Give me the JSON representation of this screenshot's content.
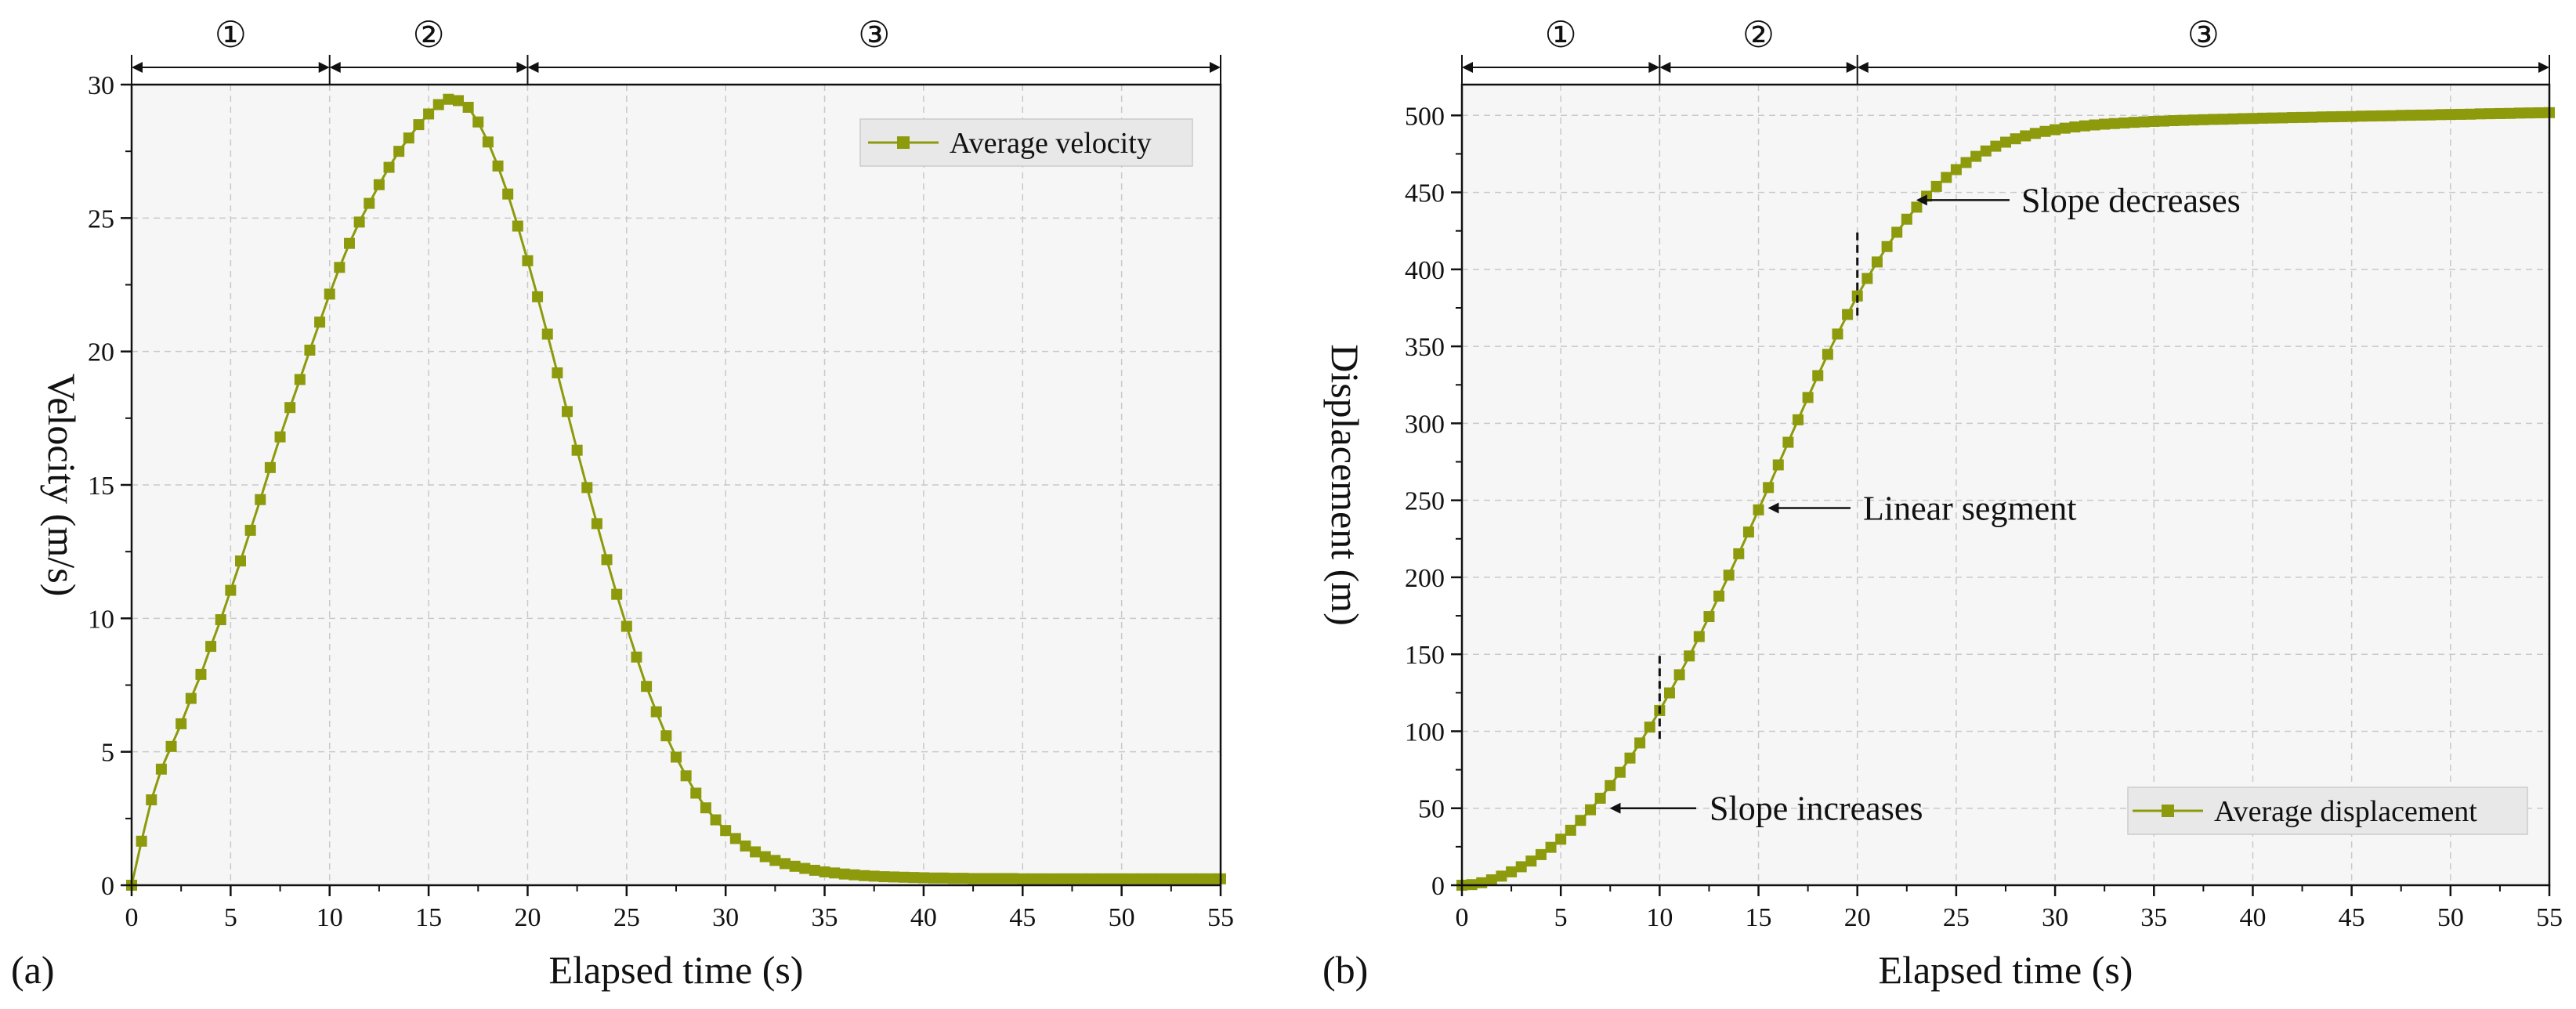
{
  "chart_data": [
    {
      "id": "a",
      "type": "line",
      "panel_label": "(a)",
      "xlabel": "Elapsed time (s)",
      "ylabel": "Velocity (m/s)",
      "xlim": [
        0,
        55
      ],
      "ylim": [
        0,
        30
      ],
      "xticks": [
        0,
        5,
        10,
        15,
        20,
        25,
        30,
        35,
        40,
        45,
        50,
        55
      ],
      "yticks": [
        0,
        5,
        10,
        15,
        20,
        25,
        30
      ],
      "grid": true,
      "legend_position": "top-right",
      "phase_boundaries": [
        0,
        10,
        20,
        55
      ],
      "phases": [
        "①",
        "②",
        "③"
      ],
      "series": [
        {
          "name": "Average velocity",
          "color": "#8c9a0c",
          "marker": "square",
          "x": [
            0,
            0.5,
            1,
            1.5,
            2,
            2.5,
            3,
            3.5,
            4,
            4.5,
            5,
            5.5,
            6,
            6.5,
            7,
            7.5,
            8,
            8.5,
            9,
            9.5,
            10,
            10.5,
            11,
            11.5,
            12,
            12.5,
            13,
            13.5,
            14,
            14.5,
            15,
            15.5,
            16,
            16.5,
            17,
            17.5,
            18,
            18.5,
            19,
            19.5,
            20,
            20.5,
            21,
            21.5,
            22,
            22.5,
            23,
            23.5,
            24,
            24.5,
            25,
            25.5,
            26,
            26.5,
            27,
            27.5,
            28,
            28.5,
            29,
            29.5,
            30,
            30.5,
            31,
            31.5,
            32,
            32.5,
            33,
            33.5,
            34,
            34.5,
            35,
            35.5,
            36,
            36.5,
            37,
            37.5,
            38,
            38.5,
            39,
            39.5,
            40,
            40.5,
            41,
            41.5,
            42,
            42.5,
            43,
            43.5,
            44,
            44.5,
            45,
            45.5,
            46,
            46.5,
            47,
            47.5,
            48,
            48.5,
            49,
            49.5,
            50,
            50.5,
            51,
            51.5,
            52,
            52.5,
            53,
            53.5,
            54,
            54.5,
            55
          ],
          "y": [
            0,
            1.65,
            3.2,
            4.35,
            5.2,
            6.05,
            7.0,
            7.9,
            8.95,
            9.95,
            11.05,
            12.15,
            13.3,
            14.45,
            15.65,
            16.8,
            17.9,
            18.95,
            20.05,
            21.1,
            22.15,
            23.15,
            24.05,
            24.85,
            25.55,
            26.25,
            26.9,
            27.5,
            28.0,
            28.5,
            28.9,
            29.25,
            29.45,
            29.4,
            29.15,
            28.6,
            27.85,
            26.95,
            25.9,
            24.7,
            23.4,
            22.05,
            20.65,
            19.2,
            17.75,
            16.3,
            14.9,
            13.55,
            12.2,
            10.9,
            9.7,
            8.55,
            7.45,
            6.5,
            5.6,
            4.8,
            4.1,
            3.45,
            2.9,
            2.45,
            2.05,
            1.75,
            1.47,
            1.25,
            1.07,
            0.93,
            0.81,
            0.71,
            0.63,
            0.56,
            0.5,
            0.46,
            0.42,
            0.39,
            0.36,
            0.34,
            0.32,
            0.31,
            0.3,
            0.29,
            0.28,
            0.27,
            0.27,
            0.26,
            0.26,
            0.25,
            0.25,
            0.25,
            0.25,
            0.25,
            0.24,
            0.24,
            0.24,
            0.24,
            0.24,
            0.24,
            0.24,
            0.24,
            0.24,
            0.24,
            0.24,
            0.24,
            0.24,
            0.24,
            0.24,
            0.24,
            0.24,
            0.24,
            0.24,
            0.24,
            0.24
          ]
        }
      ],
      "annotations": []
    },
    {
      "id": "b",
      "type": "line",
      "panel_label": "(b)",
      "xlabel": "Elapsed time (s)",
      "ylabel": "Displacement (m)",
      "xlim": [
        0,
        55
      ],
      "ylim": [
        0,
        520
      ],
      "xticks": [
        0,
        5,
        10,
        15,
        20,
        25,
        30,
        35,
        40,
        45,
        50,
        55
      ],
      "yticks": [
        0,
        50,
        100,
        150,
        200,
        250,
        300,
        350,
        400,
        450,
        500
      ],
      "grid": true,
      "legend_position": "bottom-right",
      "phase_boundaries": [
        0,
        10,
        20,
        55
      ],
      "phases": [
        "①",
        "②",
        "③"
      ],
      "series": [
        {
          "name": "Average displacement",
          "color": "#8c9a0c",
          "marker": "square",
          "x": [
            0,
            0.5,
            1,
            1.5,
            2,
            2.5,
            3,
            3.5,
            4,
            4.5,
            5,
            5.5,
            6,
            6.5,
            7,
            7.5,
            8,
            8.5,
            9,
            9.5,
            10,
            10.5,
            11,
            11.5,
            12,
            12.5,
            13,
            13.5,
            14,
            14.5,
            15,
            15.5,
            16,
            16.5,
            17,
            17.5,
            18,
            18.5,
            19,
            19.5,
            20,
            20.5,
            21,
            21.5,
            22,
            22.5,
            23,
            23.5,
            24,
            24.5,
            25,
            25.5,
            26,
            26.5,
            27,
            27.5,
            28,
            28.5,
            29,
            29.5,
            30,
            30.5,
            31,
            31.5,
            32,
            32.5,
            33,
            33.5,
            34,
            34.5,
            35,
            35.5,
            36,
            36.5,
            37,
            37.5,
            38,
            38.5,
            39,
            39.5,
            40,
            40.5,
            41,
            41.5,
            42,
            42.5,
            43,
            43.5,
            44,
            44.5,
            45,
            45.5,
            46,
            46.5,
            47,
            47.5,
            48,
            48.5,
            49,
            49.5,
            50,
            50.5,
            51,
            51.5,
            52,
            52.5,
            53,
            53.5,
            54,
            54.5,
            55
          ],
          "y": [
            0,
            0.4,
            1.6,
            3.5,
            5.9,
            8.7,
            12,
            15.7,
            19.9,
            24.6,
            29.9,
            35.7,
            42.1,
            49,
            56.5,
            64.7,
            73.4,
            82.6,
            92.4,
            102.7,
            113.5,
            124.9,
            136.7,
            148.9,
            161.5,
            174.5,
            187.8,
            201.4,
            215.3,
            229.4,
            243.8,
            258.3,
            273,
            287.7,
            302.3,
            316.8,
            331,
            344.8,
            358,
            370.7,
            382.7,
            394.1,
            404.8,
            414.8,
            424.1,
            432.6,
            440.4,
            447.5,
            453.9,
            459.7,
            464.8,
            469.4,
            473.4,
            476.9,
            480,
            482.6,
            484.8,
            486.7,
            488.3,
            489.6,
            490.7,
            491.7,
            492.5,
            493.2,
            493.8,
            494.3,
            494.7,
            495.1,
            495.5,
            495.8,
            496.1,
            496.3,
            496.6,
            496.8,
            497,
            497.2,
            497.4,
            497.5,
            497.7,
            497.9,
            498,
            498.2,
            498.3,
            498.4,
            498.6,
            498.7,
            498.8,
            499,
            499.1,
            499.2,
            499.3,
            499.5,
            499.6,
            499.7,
            499.8,
            500,
            500.1,
            500.2,
            500.3,
            500.5,
            500.6,
            500.7,
            500.8,
            501,
            501.1,
            501.2,
            501.3,
            501.5,
            501.6,
            501.7,
            501.8
          ]
        }
      ],
      "annotations": [
        {
          "text": "Slope decreases",
          "point": [
            22.5,
            445
          ]
        },
        {
          "text": "Linear segment",
          "point": [
            15,
            245
          ]
        },
        {
          "text": "Slope increases",
          "point": [
            7,
            50
          ]
        }
      ],
      "dashed_marks": [
        {
          "x": 10,
          "y_range": [
            95,
            150
          ]
        },
        {
          "x": 20,
          "y_range": [
            370,
            425
          ]
        }
      ]
    }
  ]
}
